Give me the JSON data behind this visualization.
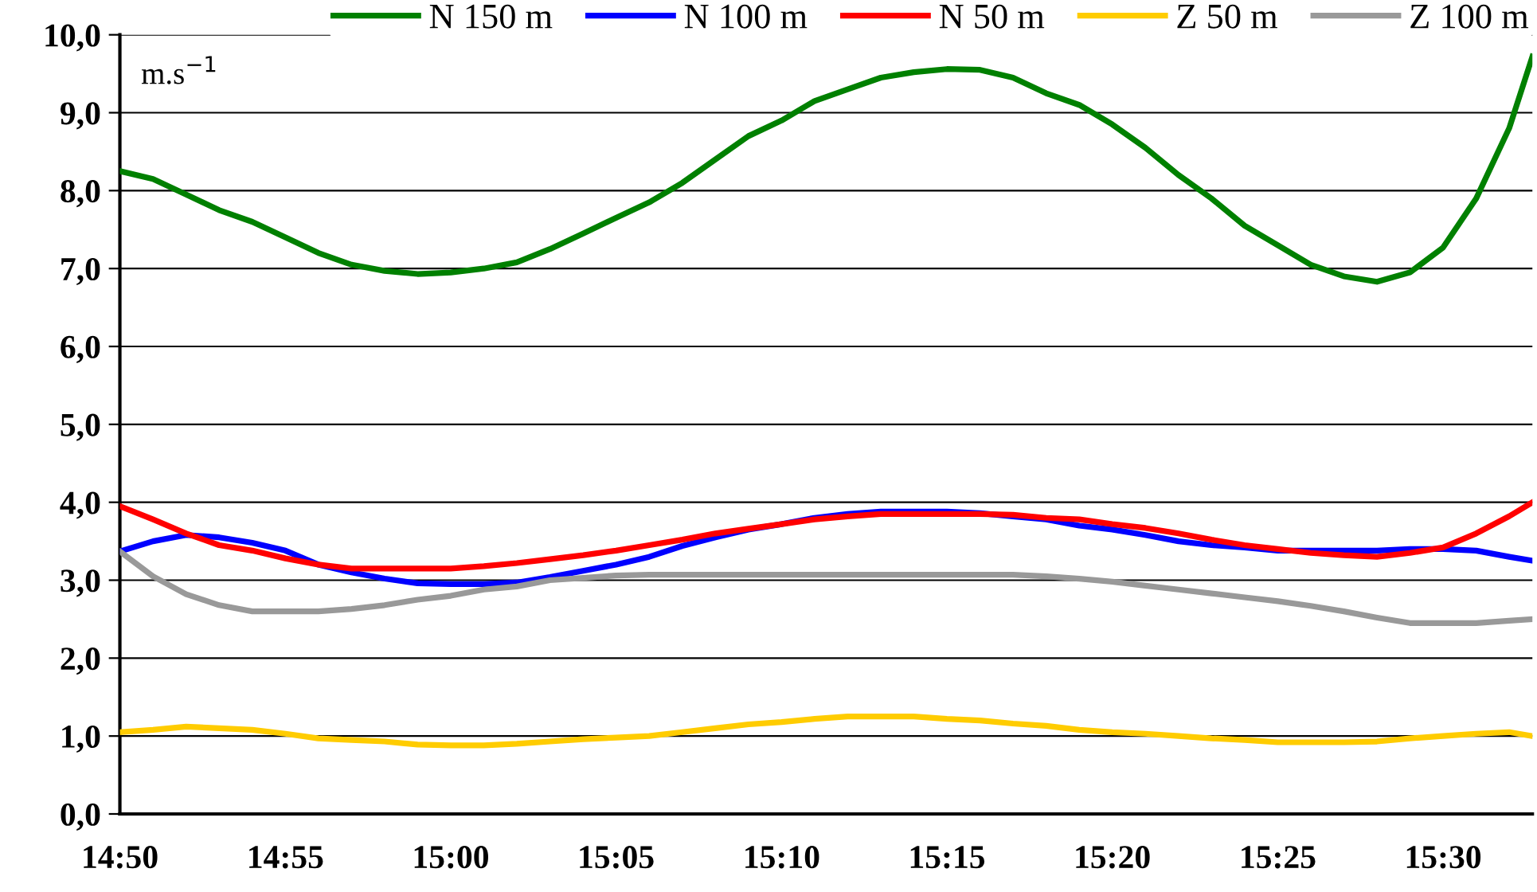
{
  "chart_data": {
    "type": "line",
    "ylabel": "m.s$^{−1}$",
    "x": [
      14.8333,
      14.85,
      14.8667,
      14.8833,
      14.9,
      14.9167,
      14.9333,
      14.95,
      14.9667,
      14.9833,
      15.0,
      15.0167,
      15.0333,
      15.05,
      15.0667,
      15.0833,
      15.1,
      15.1167,
      15.1333,
      15.15,
      15.1667,
      15.1833,
      15.2,
      15.2167,
      15.2333,
      15.25,
      15.2667,
      15.2833,
      15.3,
      15.3167,
      15.3333,
      15.35,
      15.3667,
      15.3833,
      15.4,
      15.4167,
      15.4333,
      15.45,
      15.4667,
      15.4833,
      15.5,
      15.5167,
      15.5333,
      15.545
    ],
    "series": [
      {
        "name": "N 150 m",
        "color": "#008000",
        "values": [
          8.25,
          8.15,
          7.95,
          7.75,
          7.6,
          7.4,
          7.2,
          7.05,
          6.97,
          6.93,
          6.95,
          7.0,
          7.08,
          7.25,
          7.45,
          7.65,
          7.85,
          8.1,
          8.4,
          8.7,
          8.9,
          9.15,
          9.3,
          9.45,
          9.52,
          9.56,
          9.55,
          9.45,
          9.25,
          9.1,
          8.85,
          8.55,
          8.2,
          7.9,
          7.55,
          7.3,
          7.05,
          6.9,
          6.83,
          6.95,
          7.27,
          7.9,
          8.8,
          9.72
        ]
      },
      {
        "name": "N 100 m",
        "color": "#0000ff",
        "values": [
          3.37,
          3.5,
          3.58,
          3.55,
          3.48,
          3.38,
          3.2,
          3.1,
          3.02,
          2.96,
          2.95,
          2.95,
          2.97,
          3.04,
          3.12,
          3.2,
          3.3,
          3.44,
          3.55,
          3.65,
          3.72,
          3.8,
          3.85,
          3.88,
          3.88,
          3.88,
          3.86,
          3.82,
          3.78,
          3.7,
          3.65,
          3.58,
          3.5,
          3.45,
          3.42,
          3.38,
          3.38,
          3.38,
          3.38,
          3.4,
          3.4,
          3.38,
          3.3,
          3.25
        ]
      },
      {
        "name": "N 50 m",
        "color": "#ff0000",
        "values": [
          3.95,
          3.78,
          3.6,
          3.45,
          3.38,
          3.28,
          3.2,
          3.15,
          3.15,
          3.15,
          3.15,
          3.18,
          3.22,
          3.27,
          3.32,
          3.38,
          3.45,
          3.52,
          3.6,
          3.66,
          3.72,
          3.78,
          3.82,
          3.85,
          3.85,
          3.85,
          3.85,
          3.84,
          3.8,
          3.78,
          3.72,
          3.67,
          3.6,
          3.52,
          3.45,
          3.4,
          3.35,
          3.32,
          3.3,
          3.35,
          3.42,
          3.6,
          3.82,
          4.0
        ]
      },
      {
        "name": "Z 50 m",
        "color": "#ffcc00",
        "values": [
          1.05,
          1.08,
          1.12,
          1.1,
          1.08,
          1.03,
          0.97,
          0.95,
          0.93,
          0.89,
          0.88,
          0.88,
          0.9,
          0.93,
          0.96,
          0.98,
          1.0,
          1.05,
          1.1,
          1.15,
          1.18,
          1.22,
          1.25,
          1.25,
          1.25,
          1.22,
          1.2,
          1.16,
          1.13,
          1.08,
          1.05,
          1.03,
          1.0,
          0.97,
          0.95,
          0.92,
          0.92,
          0.92,
          0.93,
          0.97,
          1.0,
          1.03,
          1.05,
          1.0
        ]
      },
      {
        "name": "Z 100 m",
        "color": "#999999",
        "values": [
          3.37,
          3.05,
          2.82,
          2.68,
          2.6,
          2.6,
          2.6,
          2.63,
          2.68,
          2.75,
          2.8,
          2.88,
          2.92,
          3.0,
          3.03,
          3.06,
          3.07,
          3.07,
          3.07,
          3.07,
          3.07,
          3.07,
          3.07,
          3.07,
          3.07,
          3.07,
          3.07,
          3.07,
          3.05,
          3.02,
          2.98,
          2.93,
          2.88,
          2.83,
          2.78,
          2.73,
          2.67,
          2.6,
          2.52,
          2.45,
          2.45,
          2.45,
          2.48,
          2.5
        ]
      }
    ],
    "xlim": [
      14.8333,
      15.545
    ],
    "xticks": [
      {
        "value": 14.8333,
        "label": "14:50"
      },
      {
        "value": 14.9167,
        "label": "14:55"
      },
      {
        "value": 15.0,
        "label": "15:00"
      },
      {
        "value": 15.0833,
        "label": "15:05"
      },
      {
        "value": 15.1667,
        "label": "15:10"
      },
      {
        "value": 15.25,
        "label": "15:15"
      },
      {
        "value": 15.3333,
        "label": "15:20"
      },
      {
        "value": 15.4167,
        "label": "15:25"
      },
      {
        "value": 15.5,
        "label": "15:30"
      }
    ],
    "ylim": [
      0,
      10
    ],
    "yticks": [
      {
        "value": 0,
        "label": "0,0"
      },
      {
        "value": 1,
        "label": "1,0"
      },
      {
        "value": 2,
        "label": "2,0"
      },
      {
        "value": 3,
        "label": "3,0"
      },
      {
        "value": 4,
        "label": "4,0"
      },
      {
        "value": 5,
        "label": "5,0"
      },
      {
        "value": 6,
        "label": "6,0"
      },
      {
        "value": 7,
        "label": "7,0"
      },
      {
        "value": 8,
        "label": "8,0"
      },
      {
        "value": 9,
        "label": "9,0"
      },
      {
        "value": 10,
        "label": "10,0"
      }
    ],
    "grid": "y",
    "legend": "top right",
    "marker": "none",
    "line_style": "solid"
  }
}
